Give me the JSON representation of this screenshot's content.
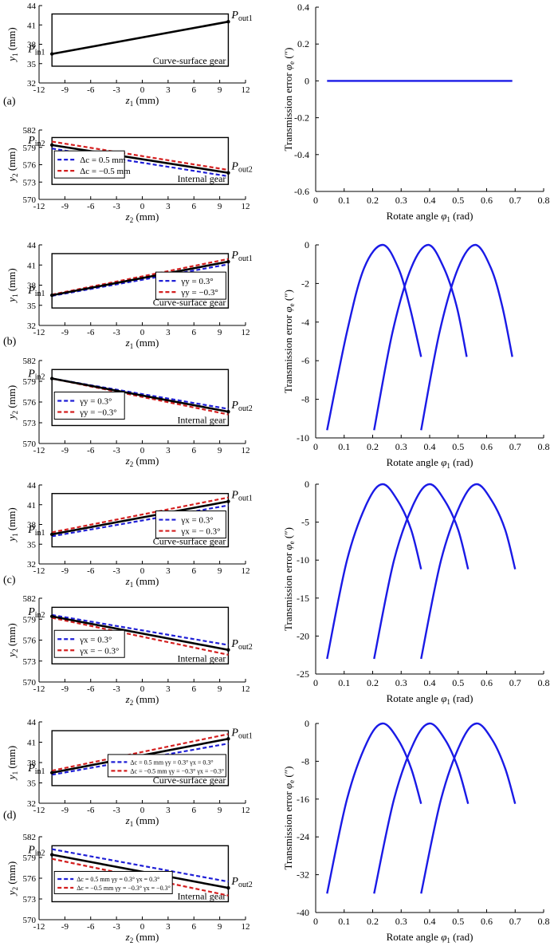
{
  "panel_labels": [
    "(a)",
    "(b)",
    "(c)",
    "(d)"
  ],
  "colors": {
    "baseline": "#000000",
    "positive": "#1f1fd6",
    "negative": "#d41f1f",
    "te_curve": "#1a1ae6"
  },
  "chart_data": [
    {
      "id": "a-curve-surface",
      "type": "line",
      "tag": "Curve-surface gear",
      "xlabel_var": "z",
      "xlabel_sub": "1",
      "xlabel_unit": "(mm)",
      "ylabel_var": "y",
      "ylabel_sub": "1",
      "ylabel_unit": "(mm)",
      "xticks": [
        "-12",
        "-9",
        "-6",
        "-3",
        "0",
        "3",
        "6",
        "9",
        "12"
      ],
      "yticks": [
        "32",
        "35",
        "38",
        "41",
        "44"
      ],
      "xlim": [
        -12,
        12
      ],
      "ylim": [
        32,
        44
      ],
      "start_label": {
        "var": "P",
        "sub": "in1"
      },
      "end_label": {
        "var": "P",
        "sub": "out1"
      },
      "series": [
        {
          "role": "baseline",
          "x": [
            -10.5,
            10
          ],
          "y": [
            36.5,
            41.5
          ]
        }
      ],
      "legend": []
    },
    {
      "id": "a-internal",
      "type": "line",
      "tag": "Internal gear",
      "xlabel_var": "z",
      "xlabel_sub": "2",
      "xlabel_unit": "(mm)",
      "ylabel_var": "y",
      "ylabel_sub": "2",
      "ylabel_unit": "(mm)",
      "xticks": [
        "-12",
        "-9",
        "-6",
        "-3",
        "0",
        "3",
        "6",
        "9",
        "12"
      ],
      "yticks": [
        "570",
        "573",
        "576",
        "579",
        "582"
      ],
      "xlim": [
        -12,
        12
      ],
      "ylim": [
        570,
        582
      ],
      "start_label": {
        "var": "P",
        "sub": "in2"
      },
      "end_label": {
        "var": "P",
        "sub": "out2"
      },
      "series": [
        {
          "role": "baseline",
          "x": [
            -10.5,
            10
          ],
          "y": [
            579.4,
            574.6
          ]
        },
        {
          "role": "positive",
          "x": [
            -10.5,
            10
          ],
          "y": [
            578.8,
            574.0
          ]
        },
        {
          "role": "negative",
          "x": [
            -10.5,
            10
          ],
          "y": [
            580.0,
            575.1
          ]
        }
      ],
      "legend": [
        {
          "role": "positive",
          "text": "Δc = 0.5 mm"
        },
        {
          "role": "negative",
          "text": "Δc = −0.5 mm"
        }
      ]
    },
    {
      "id": "a-te",
      "type": "line",
      "ylabel": "Transmission error φe (″)",
      "xlabel": "Rotate angle φ1 (rad)",
      "xticks": [
        "0",
        "0.1",
        "0.2",
        "0.3",
        "0.4",
        "0.5",
        "0.6",
        "0.7",
        "0.8"
      ],
      "yticks": [
        "0.4",
        "0.2",
        "0",
        "-0.2",
        "-0.4",
        "-0.6"
      ],
      "xlim": [
        0,
        0.8
      ],
      "ylim": [
        -0.6,
        0.4
      ],
      "series": [
        {
          "x": [
            0.04,
            0.69
          ],
          "y": [
            0,
            0
          ]
        }
      ]
    },
    {
      "id": "b-curve-surface",
      "type": "line",
      "tag": "Curve-surface gear",
      "xlabel_var": "z",
      "xlabel_sub": "1",
      "xlabel_unit": "(mm)",
      "ylabel_var": "y",
      "ylabel_sub": "1",
      "ylabel_unit": "(mm)",
      "xticks": [
        "-12",
        "-9",
        "-6",
        "-3",
        "0",
        "3",
        "6",
        "9",
        "12"
      ],
      "yticks": [
        "32",
        "35",
        "38",
        "41",
        "44"
      ],
      "xlim": [
        -12,
        12
      ],
      "ylim": [
        32,
        44
      ],
      "start_label": {
        "var": "P",
        "sub": "in1"
      },
      "end_label": {
        "var": "P",
        "sub": "out1"
      },
      "series": [
        {
          "role": "baseline",
          "x": [
            -10.5,
            10
          ],
          "y": [
            36.5,
            41.5
          ]
        },
        {
          "role": "positive",
          "x": [
            -10.5,
            10
          ],
          "y": [
            36.4,
            41.1
          ]
        },
        {
          "role": "negative",
          "x": [
            -10.5,
            10
          ],
          "y": [
            36.6,
            41.9
          ]
        }
      ],
      "legend": [
        {
          "role": "positive",
          "text": "γy = 0.3°"
        },
        {
          "role": "negative",
          "text": "γy = −0.3°"
        }
      ]
    },
    {
      "id": "b-internal",
      "type": "line",
      "tag": "Internal gear",
      "xlabel_var": "z",
      "xlabel_sub": "2",
      "xlabel_unit": "(mm)",
      "ylabel_var": "y",
      "ylabel_sub": "2",
      "ylabel_unit": "(mm)",
      "xticks": [
        "-12",
        "-9",
        "-6",
        "-3",
        "0",
        "3",
        "6",
        "9",
        "12"
      ],
      "yticks": [
        "570",
        "573",
        "576",
        "579",
        "582"
      ],
      "xlim": [
        -12,
        12
      ],
      "ylim": [
        570,
        582
      ],
      "start_label": {
        "var": "P",
        "sub": "in2"
      },
      "end_label": {
        "var": "P",
        "sub": "out2"
      },
      "series": [
        {
          "role": "baseline",
          "x": [
            -10.5,
            10
          ],
          "y": [
            579.4,
            574.6
          ]
        },
        {
          "role": "positive",
          "x": [
            -10.5,
            10
          ],
          "y": [
            579.4,
            575.0
          ]
        },
        {
          "role": "negative",
          "x": [
            -10.5,
            10
          ],
          "y": [
            579.4,
            574.2
          ]
        }
      ],
      "legend": [
        {
          "role": "positive",
          "text": "γy = 0.3°"
        },
        {
          "role": "negative",
          "text": "γy = −0.3°"
        }
      ]
    },
    {
      "id": "b-te",
      "type": "line",
      "ylabel": "Transmission error φe (″)",
      "xlabel": "Rotate angle φ1 (rad)",
      "xticks": [
        "0",
        "0.1",
        "0.2",
        "0.3",
        "0.4",
        "0.5",
        "0.6",
        "0.7",
        "0.8"
      ],
      "yticks": [
        "0",
        "-2",
        "-4",
        "-6",
        "-8",
        "-10"
      ],
      "xlim": [
        0,
        0.8
      ],
      "ylim": [
        -10,
        0
      ],
      "series": [
        {
          "x": [
            0.04,
            0.11,
            0.17,
            0.235,
            0.29,
            0.33,
            0.37
          ],
          "y": [
            -9.6,
            -4.5,
            -1.2,
            0,
            -1.2,
            -3.2,
            -5.8
          ]
        },
        {
          "x": [
            0.205,
            0.27,
            0.335,
            0.395,
            0.45,
            0.495,
            0.53
          ],
          "y": [
            -9.6,
            -4.5,
            -1.2,
            0,
            -1.2,
            -3.2,
            -5.8
          ]
        },
        {
          "x": [
            0.37,
            0.435,
            0.5,
            0.56,
            0.615,
            0.655,
            0.69
          ],
          "y": [
            -9.6,
            -4.5,
            -1.2,
            0,
            -1.2,
            -3.2,
            -5.8
          ]
        }
      ]
    },
    {
      "id": "c-curve-surface",
      "type": "line",
      "tag": "Curve-surface gear",
      "xlabel_var": "z",
      "xlabel_sub": "1",
      "xlabel_unit": "(mm)",
      "ylabel_var": "y",
      "ylabel_sub": "1",
      "ylabel_unit": "(mm)",
      "xticks": [
        "-12",
        "-9",
        "-6",
        "-3",
        "0",
        "3",
        "6",
        "9",
        "12"
      ],
      "yticks": [
        "32",
        "35",
        "38",
        "41",
        "44"
      ],
      "xlim": [
        -12,
        12
      ],
      "ylim": [
        32,
        44
      ],
      "start_label": {
        "var": "P",
        "sub": "in1"
      },
      "end_label": {
        "var": "P",
        "sub": "out1"
      },
      "series": [
        {
          "role": "baseline",
          "x": [
            -10.5,
            10
          ],
          "y": [
            36.5,
            41.5
          ]
        },
        {
          "role": "positive",
          "x": [
            -10.5,
            10
          ],
          "y": [
            36.2,
            40.9
          ]
        },
        {
          "role": "negative",
          "x": [
            -10.5,
            10
          ],
          "y": [
            36.8,
            42.1
          ]
        }
      ],
      "legend": [
        {
          "role": "positive",
          "text": "γx = 0.3°"
        },
        {
          "role": "negative",
          "text": "γx = − 0.3°"
        }
      ]
    },
    {
      "id": "c-internal",
      "type": "line",
      "tag": "Internal gear",
      "xlabel_var": "z",
      "xlabel_sub": "2",
      "xlabel_unit": "(mm)",
      "ylabel_var": "y",
      "ylabel_sub": "2",
      "ylabel_unit": "(mm)",
      "xticks": [
        "-12",
        "-9",
        "-6",
        "-3",
        "0",
        "3",
        "6",
        "9",
        "12"
      ],
      "yticks": [
        "570",
        "573",
        "576",
        "579",
        "582"
      ],
      "xlim": [
        -12,
        12
      ],
      "ylim": [
        570,
        582
      ],
      "start_label": {
        "var": "P",
        "sub": "in2"
      },
      "end_label": {
        "var": "P",
        "sub": "out2"
      },
      "series": [
        {
          "role": "baseline",
          "x": [
            -10.5,
            10
          ],
          "y": [
            579.4,
            574.6
          ]
        },
        {
          "role": "positive",
          "x": [
            -10.5,
            10
          ],
          "y": [
            579.6,
            575.3
          ]
        },
        {
          "role": "negative",
          "x": [
            -10.5,
            10
          ],
          "y": [
            579.2,
            573.9
          ]
        }
      ],
      "legend": [
        {
          "role": "positive",
          "text": "γx = 0.3°"
        },
        {
          "role": "negative",
          "text": "γx = − 0.3°"
        }
      ]
    },
    {
      "id": "c-te",
      "type": "line",
      "ylabel": "Transmission error φe (″)",
      "xlabel": "Rotate angle φ1 (rad)",
      "xticks": [
        "0",
        "0.1",
        "0.2",
        "0.3",
        "0.4",
        "0.5",
        "0.6",
        "0.7",
        "0.8"
      ],
      "yticks": [
        "0",
        "-5",
        "-10",
        "-15",
        "-20",
        "-25"
      ],
      "xlim": [
        0,
        0.8
      ],
      "ylim": [
        -25,
        0
      ],
      "series": [
        {
          "x": [
            0.04,
            0.11,
            0.18,
            0.235,
            0.29,
            0.335,
            0.37
          ],
          "y": [
            -23,
            -10,
            -2.5,
            0,
            -2.3,
            -6,
            -11.2
          ]
        },
        {
          "x": [
            0.205,
            0.275,
            0.345,
            0.4,
            0.455,
            0.5,
            0.535
          ],
          "y": [
            -23,
            -10,
            -2.5,
            0,
            -2.3,
            -6,
            -11.2
          ]
        },
        {
          "x": [
            0.37,
            0.44,
            0.51,
            0.565,
            0.62,
            0.665,
            0.7
          ],
          "y": [
            -23,
            -10,
            -2.5,
            0,
            -2.3,
            -6,
            -11.2
          ]
        }
      ]
    },
    {
      "id": "d-curve-surface",
      "type": "line",
      "tag": "Curve-surface gear",
      "xlabel_var": "z",
      "xlabel_sub": "1",
      "xlabel_unit": "(mm)",
      "ylabel_var": "y",
      "ylabel_sub": "1",
      "ylabel_unit": "(mm)",
      "xticks": [
        "-12",
        "-9",
        "-6",
        "-3",
        "0",
        "3",
        "6",
        "9",
        "12"
      ],
      "yticks": [
        "32",
        "35",
        "38",
        "41",
        "44"
      ],
      "xlim": [
        -12,
        12
      ],
      "ylim": [
        32,
        44
      ],
      "start_label": {
        "var": "P",
        "sub": "in1"
      },
      "end_label": {
        "var": "P",
        "sub": "out1"
      },
      "series": [
        {
          "role": "baseline",
          "x": [
            -10.5,
            10
          ],
          "y": [
            36.5,
            41.5
          ]
        },
        {
          "role": "positive",
          "x": [
            -10.5,
            10
          ],
          "y": [
            36.2,
            40.8
          ]
        },
        {
          "role": "negative",
          "x": [
            -10.5,
            10
          ],
          "y": [
            36.8,
            42.2
          ]
        }
      ],
      "legend": [
        {
          "role": "positive",
          "text": "Δc = 0.5 mm   γy = 0.3°   γx = 0.3°"
        },
        {
          "role": "negative",
          "text": "Δc = −0.5 mm   γy = −0.3°   γx = −0.3°"
        }
      ]
    },
    {
      "id": "d-internal",
      "type": "line",
      "tag": "Internal gear",
      "xlabel_var": "z",
      "xlabel_sub": "2",
      "xlabel_unit": "(mm)",
      "ylabel_var": "y",
      "ylabel_sub": "2",
      "ylabel_unit": "(mm)",
      "xticks": [
        "-12",
        "-9",
        "-6",
        "-3",
        "0",
        "3",
        "6",
        "9",
        "12"
      ],
      "yticks": [
        "570",
        "573",
        "576",
        "579",
        "582"
      ],
      "xlim": [
        -12,
        12
      ],
      "ylim": [
        570,
        582
      ],
      "start_label": {
        "var": "P",
        "sub": "in2"
      },
      "end_label": {
        "var": "P",
        "sub": "out2"
      },
      "series": [
        {
          "role": "baseline",
          "x": [
            -10.5,
            10
          ],
          "y": [
            579.4,
            574.6
          ]
        },
        {
          "role": "positive",
          "x": [
            -10.5,
            10
          ],
          "y": [
            580.2,
            575.5
          ]
        },
        {
          "role": "negative",
          "x": [
            -10.5,
            10
          ],
          "y": [
            578.8,
            573.5
          ]
        }
      ],
      "legend": [
        {
          "role": "positive",
          "text": "Δc = 0.5 mm   γy = 0.3°   γx = 0.3°"
        },
        {
          "role": "negative",
          "text": "Δc = −0.5 mm   γy = −0.3°   γx = −0.3°"
        }
      ]
    },
    {
      "id": "d-te",
      "type": "line",
      "ylabel": "Transmission error φe (″)",
      "xlabel": "Rotate angle φ1 (rad)",
      "xticks": [
        "0",
        "0.1",
        "0.2",
        "0.3",
        "0.4",
        "0.5",
        "0.6",
        "0.7",
        "0.8"
      ],
      "yticks": [
        "0",
        "-8",
        "-16",
        "-24",
        "-32",
        "-40"
      ],
      "xlim": [
        0,
        0.8
      ],
      "ylim": [
        -40,
        0
      ],
      "series": [
        {
          "x": [
            0.04,
            0.11,
            0.18,
            0.235,
            0.29,
            0.335,
            0.37
          ],
          "y": [
            -36,
            -16,
            -4,
            0,
            -3.5,
            -9.5,
            -17
          ]
        },
        {
          "x": [
            0.205,
            0.275,
            0.345,
            0.4,
            0.455,
            0.5,
            0.535
          ],
          "y": [
            -36,
            -16,
            -4,
            0,
            -3.5,
            -9.5,
            -17
          ]
        },
        {
          "x": [
            0.37,
            0.44,
            0.51,
            0.565,
            0.62,
            0.665,
            0.7
          ],
          "y": [
            -36,
            -16,
            -4,
            0,
            -3.5,
            -9.5,
            -17
          ]
        }
      ]
    }
  ]
}
